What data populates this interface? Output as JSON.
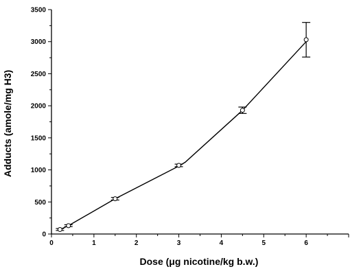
{
  "chart_data": {
    "type": "line",
    "title": "",
    "xlabel": "Dose (μg nicotine/kg b.w.)",
    "ylabel": "Adducts (amole/mg H3)",
    "xlim": [
      0,
      7
    ],
    "ylim": [
      0,
      3500
    ],
    "xticks": [
      0,
      1,
      2,
      3,
      4,
      5,
      6
    ],
    "yticks": [
      0,
      500,
      1000,
      1500,
      2000,
      2500,
      3000,
      3500
    ],
    "grid": false,
    "legend": "none",
    "series": [
      {
        "x": [
          0.2,
          0.4,
          1.5,
          3.0,
          4.5,
          6.0
        ],
        "y": [
          70,
          130,
          550,
          1070,
          1930,
          3030
        ],
        "y_err": [
          15,
          15,
          20,
          20,
          50,
          270
        ]
      }
    ],
    "line_x": [
      0.2,
      0.4,
      1.5,
      3.0,
      3.15,
      4.5,
      6.0
    ],
    "line_y": [
      70,
      130,
      550,
      1060,
      1120,
      1930,
      3000
    ],
    "colors": {
      "line": "#000000",
      "marker_fill": "#ffffff"
    }
  }
}
